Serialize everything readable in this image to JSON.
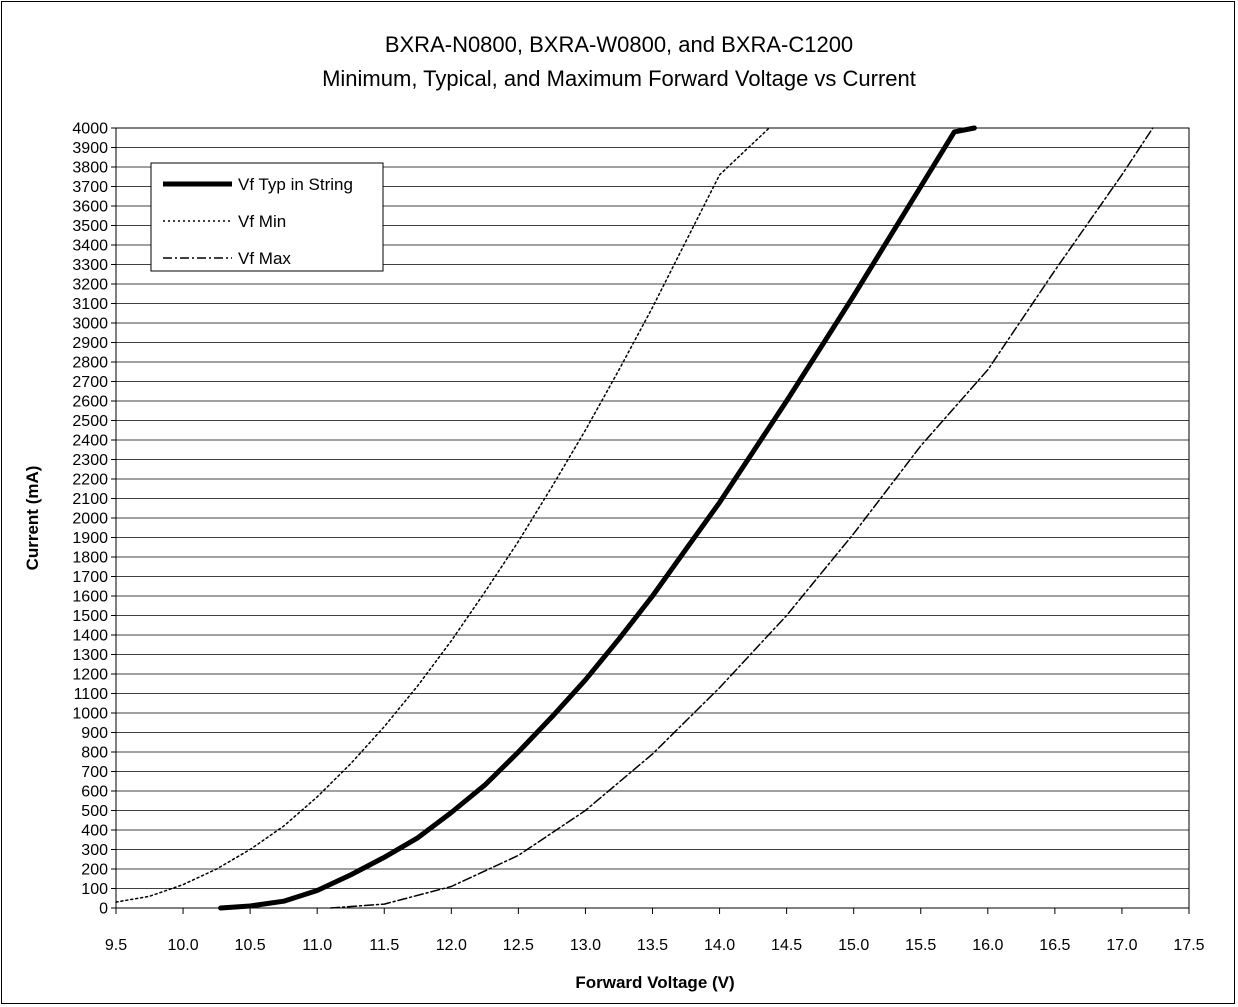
{
  "chart_data": {
    "type": "line",
    "title": "BXRA-N0800, BXRA-W0800, and BXRA-C1200",
    "subtitle": "Minimum, Typical, and Maximum Forward Voltage vs Current",
    "xlabel": "Forward Voltage (V)",
    "ylabel": "Current (mA)",
    "xlim": [
      9.5,
      17.5
    ],
    "ylim": [
      0,
      4000
    ],
    "x_ticks": [
      "9.5",
      "10.0",
      "10.5",
      "11.0",
      "11.5",
      "12.0",
      "12.5",
      "13.0",
      "13.5",
      "14.0",
      "14.5",
      "15.0",
      "15.5",
      "16.0",
      "16.5",
      "17.0",
      "17.5"
    ],
    "y_ticks": [
      "0",
      "100",
      "200",
      "300",
      "400",
      "500",
      "600",
      "700",
      "800",
      "900",
      "1000",
      "1100",
      "1200",
      "1300",
      "1400",
      "1500",
      "1600",
      "1700",
      "1800",
      "1900",
      "2000",
      "2100",
      "2200",
      "2300",
      "2400",
      "2500",
      "2600",
      "2700",
      "2800",
      "2900",
      "3000",
      "3100",
      "3200",
      "3300",
      "3400",
      "3500",
      "3600",
      "3700",
      "3800",
      "3900",
      "4000"
    ],
    "grid": "horizontal",
    "legend_position": "top-left",
    "series": [
      {
        "name": "Vf Typ in String",
        "style": "solid-thick",
        "color": "#000000",
        "points": [
          [
            10.28,
            0
          ],
          [
            10.5,
            10
          ],
          [
            10.75,
            35
          ],
          [
            11.0,
            90
          ],
          [
            11.25,
            170
          ],
          [
            11.5,
            260
          ],
          [
            11.75,
            360
          ],
          [
            12.0,
            490
          ],
          [
            12.25,
            630
          ],
          [
            12.5,
            800
          ],
          [
            12.75,
            980
          ],
          [
            13.0,
            1170
          ],
          [
            13.25,
            1380
          ],
          [
            13.5,
            1600
          ],
          [
            13.75,
            1840
          ],
          [
            14.0,
            2080
          ],
          [
            14.25,
            2340
          ],
          [
            14.5,
            2600
          ],
          [
            14.75,
            2870
          ],
          [
            15.0,
            3140
          ],
          [
            15.25,
            3420
          ],
          [
            15.5,
            3700
          ],
          [
            15.75,
            3980
          ],
          [
            15.9,
            4000
          ]
        ]
      },
      {
        "name": "Vf Min",
        "style": "dotted",
        "color": "#000000",
        "points": [
          [
            9.5,
            30
          ],
          [
            9.75,
            60
          ],
          [
            10.0,
            120
          ],
          [
            10.25,
            200
          ],
          [
            10.5,
            300
          ],
          [
            10.75,
            420
          ],
          [
            11.0,
            570
          ],
          [
            11.25,
            740
          ],
          [
            11.5,
            930
          ],
          [
            11.75,
            1140
          ],
          [
            12.0,
            1370
          ],
          [
            12.25,
            1620
          ],
          [
            12.5,
            1880
          ],
          [
            12.75,
            2160
          ],
          [
            13.0,
            2450
          ],
          [
            13.25,
            2760
          ],
          [
            13.5,
            3080
          ],
          [
            13.75,
            3420
          ],
          [
            14.0,
            3760
          ],
          [
            14.37,
            4000
          ]
        ]
      },
      {
        "name": "Vf Max",
        "style": "dash-dot",
        "color": "#000000",
        "points": [
          [
            11.1,
            0
          ],
          [
            11.5,
            20
          ],
          [
            12.0,
            110
          ],
          [
            12.5,
            270
          ],
          [
            13.0,
            500
          ],
          [
            13.5,
            790
          ],
          [
            14.0,
            1130
          ],
          [
            14.5,
            1500
          ],
          [
            15.0,
            1920
          ],
          [
            15.5,
            2370
          ],
          [
            16.0,
            2760
          ],
          [
            16.5,
            3270
          ],
          [
            17.0,
            3760
          ],
          [
            17.23,
            4000
          ]
        ]
      }
    ]
  }
}
